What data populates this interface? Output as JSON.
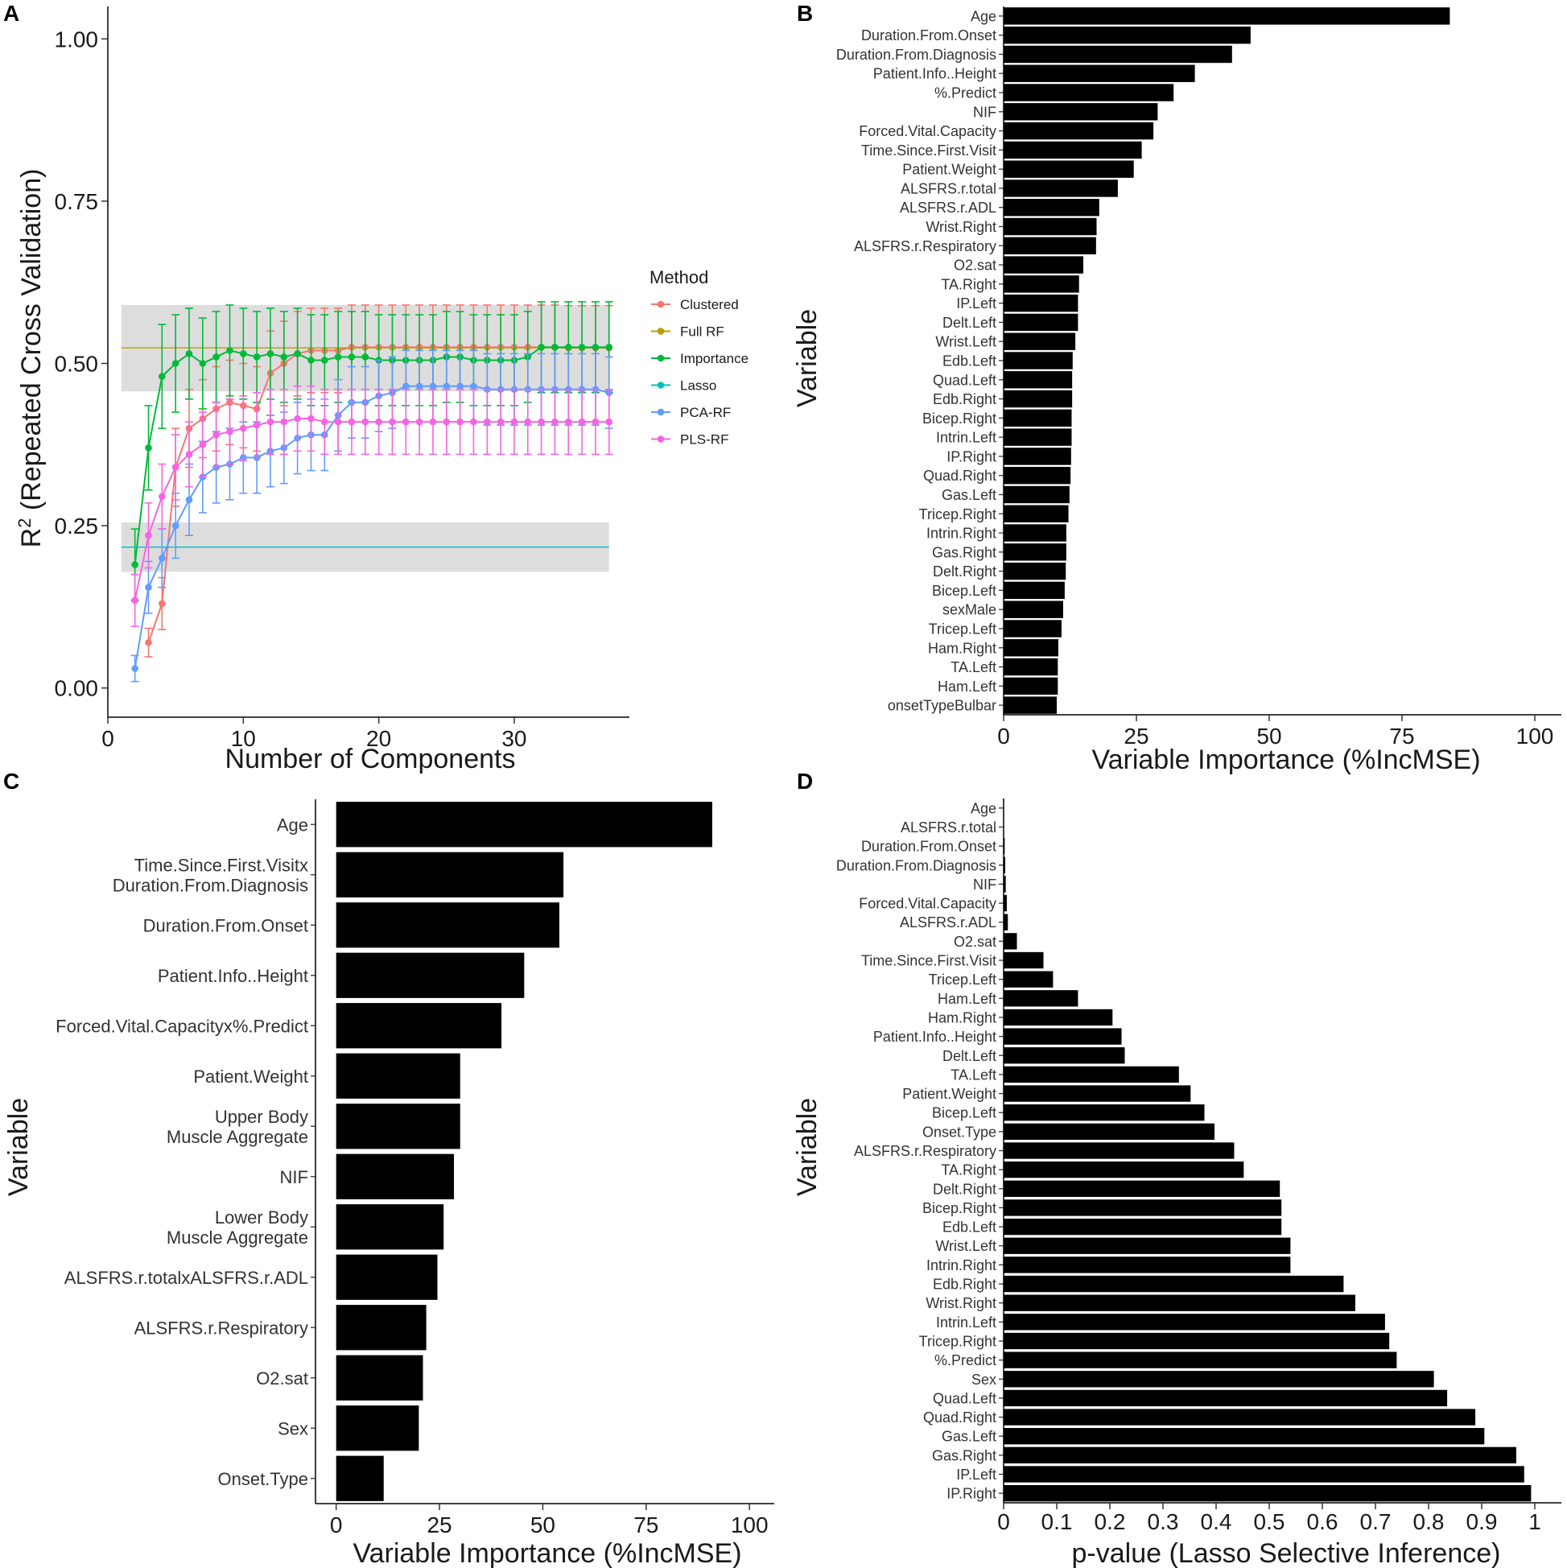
{
  "chart_data": [
    {
      "panel": "A",
      "type": "line",
      "xlabel": "Number of Components",
      "ylabel": "R2 (Repeated Cross Validation)",
      "ylabel_main": "R",
      "ylabel_sup": "2",
      "ylabel_rest": " (Repeated Cross Validation)",
      "xlim": [
        0,
        38.5
      ],
      "ylim": [
        -0.045,
        1.05
      ],
      "xticks": [
        0,
        10,
        20,
        30
      ],
      "yticks": [
        0.0,
        0.25,
        0.5,
        0.75,
        1.0
      ],
      "ytick_labels": [
        "0.00",
        "0.25",
        "0.50",
        "0.75",
        "1.00"
      ],
      "grid": false,
      "legend": {
        "title": "Method",
        "position": "right"
      },
      "bands": [
        {
          "name": "Full RF",
          "xmin": 1,
          "xmax": 37,
          "ymin": 0.457,
          "ymax": 0.59,
          "center": 0.524,
          "color": "#B79F00"
        },
        {
          "name": "Lasso",
          "xmin": 1,
          "xmax": 37,
          "ymin": 0.179,
          "ymax": 0.255,
          "center": 0.217,
          "color": "#00BFC4"
        }
      ],
      "series": [
        {
          "name": "Clustered",
          "color": "#F8766D",
          "x": [
            3,
            4,
            5,
            6,
            7,
            8,
            9,
            10,
            11,
            12,
            13,
            14,
            15,
            16,
            17,
            18,
            19,
            20,
            21,
            22,
            23,
            24,
            25,
            26,
            27,
            28,
            29,
            30,
            31,
            32,
            33,
            34,
            35,
            36,
            37
          ],
          "values": [
            0.07,
            0.13,
            0.34,
            0.4,
            0.415,
            0.43,
            0.44,
            0.435,
            0.43,
            0.485,
            0.5,
            0.515,
            0.52,
            0.52,
            0.52,
            0.525,
            0.525,
            0.525,
            0.525,
            0.525,
            0.525,
            0.525,
            0.525,
            0.525,
            0.525,
            0.525,
            0.525,
            0.525,
            0.525,
            0.525,
            0.525,
            0.524,
            0.524,
            0.524,
            0.524
          ],
          "err": [
            0.022,
            0.04,
            0.06,
            0.06,
            0.06,
            0.065,
            0.065,
            0.065,
            0.065,
            0.065,
            0.065,
            0.065,
            0.065,
            0.065,
            0.065,
            0.065,
            0.065,
            0.065,
            0.065,
            0.065,
            0.065,
            0.065,
            0.065,
            0.065,
            0.065,
            0.065,
            0.065,
            0.065,
            0.065,
            0.065,
            0.065,
            0.065,
            0.065,
            0.065,
            0.065
          ]
        },
        {
          "name": "Full RF",
          "color": "#B79F00",
          "x": [
            1,
            37
          ],
          "values": [
            0.524,
            0.524
          ],
          "err": [
            0,
            0
          ]
        },
        {
          "name": "Importance",
          "color": "#00BA38",
          "x": [
            2,
            3,
            4,
            5,
            6,
            7,
            8,
            9,
            10,
            11,
            12,
            13,
            14,
            15,
            16,
            17,
            18,
            19,
            20,
            21,
            22,
            23,
            24,
            25,
            26,
            27,
            28,
            29,
            30,
            31,
            32,
            33,
            34,
            35,
            36,
            37
          ],
          "values": [
            0.19,
            0.37,
            0.48,
            0.5,
            0.515,
            0.5,
            0.51,
            0.52,
            0.515,
            0.51,
            0.515,
            0.51,
            0.515,
            0.505,
            0.505,
            0.51,
            0.51,
            0.51,
            0.505,
            0.505,
            0.505,
            0.505,
            0.505,
            0.51,
            0.51,
            0.505,
            0.505,
            0.505,
            0.505,
            0.51,
            0.525,
            0.525,
            0.525,
            0.525,
            0.525,
            0.525
          ],
          "err": [
            0.055,
            0.065,
            0.08,
            0.075,
            0.07,
            0.07,
            0.07,
            0.07,
            0.07,
            0.07,
            0.07,
            0.07,
            0.07,
            0.07,
            0.07,
            0.07,
            0.07,
            0.07,
            0.07,
            0.07,
            0.07,
            0.07,
            0.07,
            0.07,
            0.07,
            0.07,
            0.07,
            0.07,
            0.07,
            0.07,
            0.07,
            0.07,
            0.07,
            0.07,
            0.07,
            0.07
          ]
        },
        {
          "name": "Lasso",
          "color": "#00BFC4",
          "x": [
            1,
            37
          ],
          "values": [
            0.217,
            0.217
          ],
          "err": [
            0,
            0
          ]
        },
        {
          "name": "PCA-RF",
          "color": "#619CFF",
          "x": [
            2,
            3,
            4,
            5,
            6,
            7,
            8,
            9,
            10,
            11,
            12,
            13,
            14,
            15,
            16,
            17,
            18,
            19,
            20,
            21,
            22,
            23,
            24,
            25,
            26,
            27,
            28,
            29,
            30,
            31,
            32,
            33,
            34,
            35,
            36,
            37
          ],
          "values": [
            0.03,
            0.155,
            0.2,
            0.25,
            0.29,
            0.325,
            0.34,
            0.345,
            0.355,
            0.355,
            0.365,
            0.37,
            0.385,
            0.39,
            0.39,
            0.42,
            0.44,
            0.44,
            0.45,
            0.455,
            0.465,
            0.465,
            0.465,
            0.465,
            0.465,
            0.465,
            0.46,
            0.46,
            0.46,
            0.46,
            0.46,
            0.46,
            0.46,
            0.46,
            0.46,
            0.455
          ],
          "err": [
            0.02,
            0.04,
            0.045,
            0.05,
            0.055,
            0.055,
            0.055,
            0.055,
            0.055,
            0.055,
            0.055,
            0.055,
            0.055,
            0.055,
            0.055,
            0.055,
            0.055,
            0.055,
            0.055,
            0.055,
            0.055,
            0.055,
            0.055,
            0.055,
            0.055,
            0.055,
            0.055,
            0.055,
            0.055,
            0.055,
            0.055,
            0.055,
            0.055,
            0.055,
            0.055,
            0.055
          ]
        },
        {
          "name": "PLS-RF",
          "color": "#F564E3",
          "x": [
            2,
            3,
            4,
            5,
            6,
            7,
            8,
            9,
            10,
            11,
            12,
            13,
            14,
            15,
            16,
            17,
            18,
            19,
            20,
            21,
            22,
            23,
            24,
            25,
            26,
            27,
            28,
            29,
            30,
            31,
            32,
            33,
            34,
            35,
            36,
            37
          ],
          "values": [
            0.135,
            0.235,
            0.295,
            0.34,
            0.36,
            0.375,
            0.39,
            0.395,
            0.4,
            0.405,
            0.41,
            0.41,
            0.415,
            0.415,
            0.41,
            0.41,
            0.41,
            0.41,
            0.41,
            0.41,
            0.41,
            0.41,
            0.41,
            0.41,
            0.41,
            0.41,
            0.41,
            0.41,
            0.41,
            0.41,
            0.41,
            0.41,
            0.41,
            0.41,
            0.41,
            0.41
          ],
          "err": [
            0.04,
            0.05,
            0.05,
            0.05,
            0.05,
            0.05,
            0.05,
            0.05,
            0.05,
            0.05,
            0.05,
            0.05,
            0.05,
            0.05,
            0.05,
            0.05,
            0.05,
            0.05,
            0.05,
            0.05,
            0.05,
            0.05,
            0.05,
            0.05,
            0.05,
            0.05,
            0.05,
            0.05,
            0.05,
            0.05,
            0.05,
            0.05,
            0.05,
            0.05,
            0.05,
            0.05
          ]
        }
      ]
    },
    {
      "panel": "B",
      "type": "bar",
      "orientation": "horizontal",
      "xlabel": "Variable Importance (%IncMSE)",
      "ylabel": "Variable",
      "xlim": [
        0,
        105
      ],
      "xticks": [
        0,
        25,
        50,
        75,
        100
      ],
      "xtick_labels": [
        "0",
        "25",
        "50",
        "75",
        "100"
      ],
      "categories": [
        "Age",
        "Duration.From.Onset",
        "Duration.From.Diagnosis",
        "Patient.Info..Height",
        "%.Predict",
        "NIF",
        "Forced.Vital.Capacity",
        "Time.Since.First.Visit",
        "Patient.Weight",
        "ALSFRS.r.total",
        "ALSFRS.r.ADL",
        "Wrist.Right",
        "ALSFRS.r.Respiratory",
        "O2.sat",
        "TA.Right",
        "IP.Left",
        "Delt.Left",
        "Wrist.Left",
        "Edb.Left",
        "Quad.Left",
        "Edb.Right",
        "Bicep.Right",
        "Intrin.Left",
        "IP.Right",
        "Quad.Right",
        "Gas.Left",
        "Tricep.Right",
        "Intrin.Right",
        "Gas.Right",
        "Delt.Right",
        "Bicep.Left",
        "sexMale",
        "Tricep.Left",
        "Ham.Right",
        "TA.Left",
        "Ham.Left",
        "onsetTypeBulbar"
      ],
      "values": [
        84,
        46.5,
        43,
        36,
        32,
        29,
        28.2,
        26,
        24.5,
        21.5,
        18,
        17.5,
        17.4,
        15,
        14.2,
        14,
        14,
        13.5,
        13,
        12.9,
        12.9,
        12.8,
        12.8,
        12.7,
        12.6,
        12.4,
        12.2,
        11.8,
        11.8,
        11.7,
        11.5,
        11.2,
        10.9,
        10.3,
        10.2,
        10.2,
        10
      ]
    },
    {
      "panel": "C",
      "type": "bar",
      "orientation": "horizontal",
      "xlabel": "Variable Importance (%IncMSE)",
      "ylabel": "Variable",
      "xlim": [
        -5,
        106
      ],
      "xticks": [
        0,
        25,
        50,
        75,
        100
      ],
      "xtick_labels": [
        "0",
        "25",
        "50",
        "75",
        "100"
      ],
      "categories": [
        [
          "Age"
        ],
        [
          "Time.Since.First.Visitx",
          "Duration.From.Diagnosis"
        ],
        [
          "Duration.From.Onset"
        ],
        [
          "Patient.Info..Height"
        ],
        [
          "Forced.Vital.Capacityx%.Predict"
        ],
        [
          "Patient.Weight"
        ],
        [
          "Upper Body",
          "Muscle Aggregate"
        ],
        [
          "NIF"
        ],
        [
          "Lower Body",
          "Muscle Aggregate"
        ],
        [
          "ALSFRS.r.totalxALSFRS.r.ADL"
        ],
        [
          "ALSFRS.r.Respiratory"
        ],
        [
          "O2.sat"
        ],
        [
          "Sex"
        ],
        [
          "Onset.Type"
        ]
      ],
      "values": [
        91,
        55,
        54,
        45.5,
        40,
        30,
        30,
        28.5,
        26,
        24.5,
        21.8,
        21,
        20,
        11.5
      ]
    },
    {
      "panel": "D",
      "type": "bar",
      "orientation": "horizontal",
      "xlabel": "p-value (Lasso Selective Inference)",
      "ylabel": "Variable",
      "xlim": [
        0,
        1.05
      ],
      "xticks": [
        0,
        0.1,
        0.2,
        0.3,
        0.4,
        0.5,
        0.6,
        0.7,
        0.8,
        0.9,
        1
      ],
      "xtick_labels": [
        "0",
        "0.1",
        "0.2",
        "0.3",
        "0.4",
        "0.5",
        "0.6",
        "0.7",
        "0.8",
        "0.9",
        "1"
      ],
      "categories": [
        "Age",
        "ALSFRS.r.total",
        "Duration.From.Onset",
        "Duration.From.Diagnosis",
        "NIF",
        "Forced.Vital.Capacity",
        "ALSFRS.r.ADL",
        "O2.sat",
        "Time.Since.First.Visit",
        "Tricep.Left",
        "Ham.Left",
        "Ham.Right",
        "Patient.Info..Height",
        "Delt.Left",
        "TA.Left",
        "Patient.Weight",
        "Bicep.Left",
        "Onset.Type",
        "ALSFRS.r.Respiratory",
        "TA.Right",
        "Delt.Right",
        "Bicep.Right",
        "Edb.Left",
        "Wrist.Left",
        "Intrin.Right",
        "Edb.Right",
        "Wrist.Right",
        "Intrin.Left",
        "Tricep.Right",
        "%.Predict",
        "Sex",
        "Quad.Left",
        "Quad.Right",
        "Gas.Left",
        "Gas.Right",
        "IP.Left",
        "IP.Right"
      ],
      "values": [
        0,
        0,
        0.002,
        0.003,
        0.004,
        0.006,
        0.008,
        0.025,
        0.075,
        0.093,
        0.14,
        0.205,
        0.222,
        0.228,
        0.33,
        0.352,
        0.378,
        0.397,
        0.434,
        0.452,
        0.52,
        0.523,
        0.523,
        0.54,
        0.54,
        0.64,
        0.662,
        0.718,
        0.726,
        0.74,
        0.81,
        0.835,
        0.888,
        0.905,
        0.965,
        0.98,
        0.993
      ]
    }
  ],
  "panels": {
    "A": "A",
    "B": "B",
    "C": "C",
    "D": "D"
  }
}
